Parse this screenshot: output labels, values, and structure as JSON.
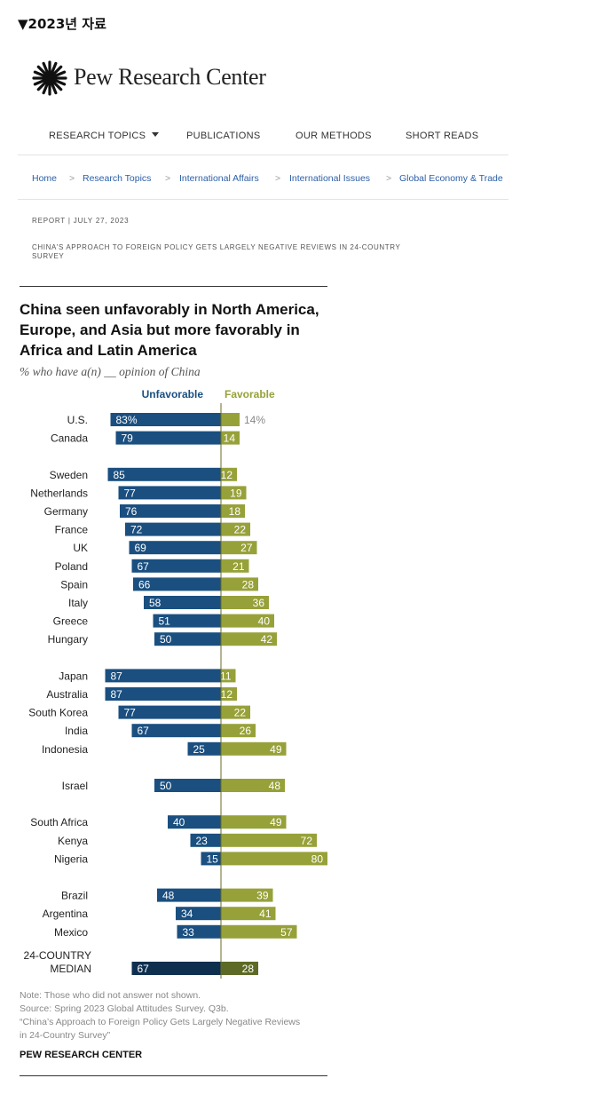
{
  "top_label": "▼2023년 자료",
  "brand": {
    "name": "Pew Research Center",
    "logo_icon": "pew-sunburst-logo-icon"
  },
  "nav": {
    "items": [
      {
        "label": "RESEARCH TOPICS",
        "has_dropdown": true
      },
      {
        "label": "PUBLICATIONS"
      },
      {
        "label": "OUR METHODS"
      },
      {
        "label": "SHORT READS"
      }
    ]
  },
  "breadcrumb": [
    "Home",
    "Research Topics",
    "International Affairs",
    "International Issues",
    "Global Economy & Trade"
  ],
  "breadcrumb_separator": ">",
  "report": {
    "meta": "REPORT | JULY 27, 2023",
    "title": "CHINA'S APPROACH TO FOREIGN POLICY GETS LARGELY NEGATIVE REVIEWS IN 24-COUNTRY SURVEY"
  },
  "chart_data": {
    "type": "bar",
    "title": "China seen unfavorably in North America, Europe, and Asia but more favorably in Africa and Latin America",
    "subtitle": "% who have a(n) __ opinion of China",
    "series": [
      {
        "name": "Unfavorable",
        "color": "#1a4f80",
        "values": [
          83,
          79,
          85,
          77,
          76,
          72,
          69,
          67,
          66,
          58,
          51,
          50,
          87,
          87,
          77,
          67,
          25,
          50,
          40,
          23,
          15,
          48,
          34,
          33,
          67
        ]
      },
      {
        "name": "Favorable",
        "color": "#97a139",
        "values": [
          14,
          14,
          12,
          19,
          18,
          22,
          27,
          21,
          28,
          36,
          40,
          42,
          11,
          12,
          22,
          26,
          49,
          48,
          49,
          72,
          80,
          39,
          41,
          57,
          28
        ]
      }
    ],
    "categories": [
      "U.S.",
      "Canada",
      "Sweden",
      "Netherlands",
      "Germany",
      "France",
      "UK",
      "Poland",
      "Spain",
      "Italy",
      "Greece",
      "Hungary",
      "Japan",
      "Australia",
      "South Korea",
      "India",
      "Indonesia",
      "Israel",
      "South Africa",
      "Kenya",
      "Nigeria",
      "Brazil",
      "Argentina",
      "Mexico",
      "24-COUNTRY MEDIAN"
    ],
    "groups": [
      2,
      10,
      5,
      1,
      3,
      3,
      1
    ],
    "median_colors": {
      "unfavorable": "#0f2f4f",
      "favorable": "#5d6a26"
    },
    "first_row_suffix": "%",
    "axis_color": "#6b6b2a"
  },
  "notes": {
    "note": "Note: Those who did not answer not shown.",
    "source": "Source: Spring 2023 Global Attitudes Survey. Q3b.",
    "citation_1": "“China’s Approach to Foreign Policy Gets Largely Negative Reviews",
    "citation_2": "in 24-Country Survey”",
    "org": "PEW RESEARCH CENTER"
  }
}
